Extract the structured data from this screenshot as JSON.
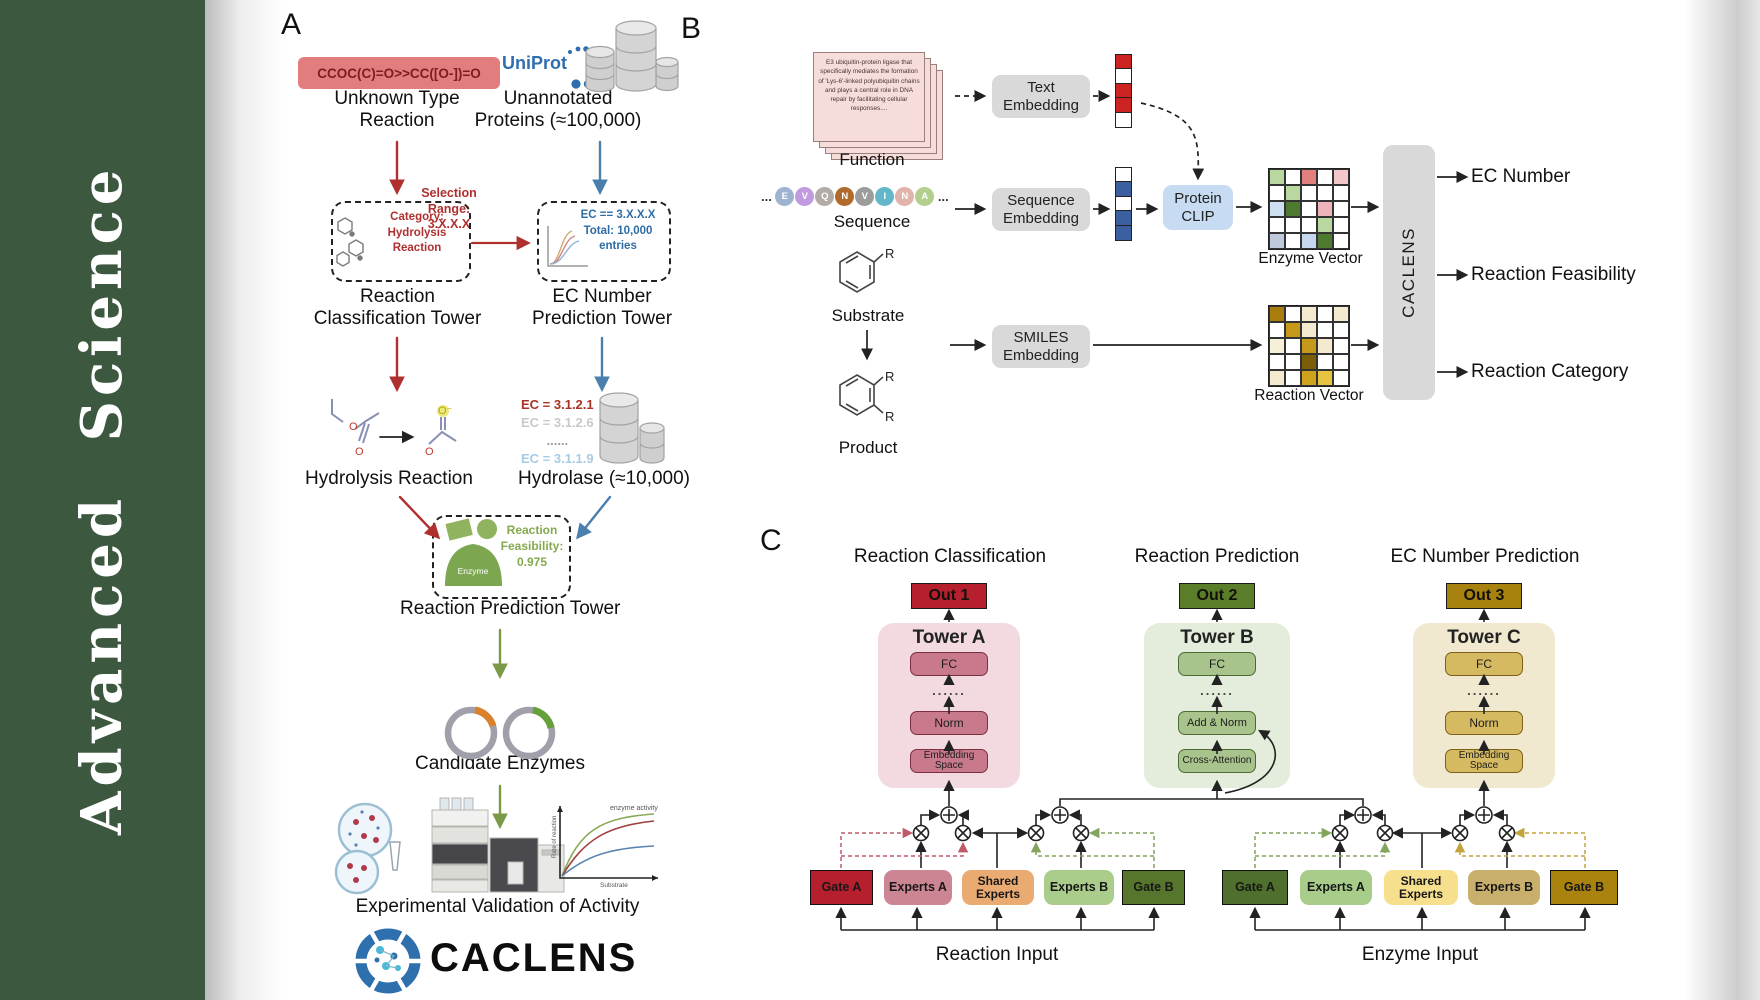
{
  "sidebar": {
    "journal_title": "Advanced  Science"
  },
  "panel_a": {
    "label": "A",
    "smiles": "CCOC(C)=O>>CC([O-])=O",
    "uniprot": "UniProt",
    "unknown_reaction": "Unknown Type Reaction",
    "unannotated_proteins": "Unannotated Proteins (≈100,000)",
    "selection_range": "Selection Range: 3.X.X.X",
    "category_box": "Category: Hydrolysis Reaction",
    "ec_box": "EC == 3.X.X.X Total: 10,000 entries",
    "classification_tower": "Reaction Classification Tower",
    "ec_tower": "EC Number Prediction Tower",
    "hydrolysis_reaction": "Hydrolysis Reaction",
    "ec_list": [
      {
        "text": "EC = 3.1.2.1",
        "color": "#a93226"
      },
      {
        "text": "EC = 3.1.2.6",
        "color": "#c9c9c9"
      },
      {
        "text": "......",
        "color": "#9b9b9b"
      },
      {
        "text": "EC = 3.1.1.9",
        "color": "#a8cbe4"
      }
    ],
    "hydrolase": "Hydrolase (≈10,000)",
    "enzyme_badge": "Enzyme",
    "feasibility": "Reaction Feasibility: 0.975",
    "prediction_tower": "Reaction Prediction Tower",
    "candidate_enzymes": "Candidate Enzymes",
    "plot": {
      "ylabel": "Rate of reaction",
      "xlabel": "Substrate",
      "annotation": "enzyme activity"
    },
    "validation": "Experimental Validation of Activity",
    "brand": "CACLENS"
  },
  "panel_b": {
    "label": "B",
    "function_text": "E3 ubiquitin-protein ligase that specifically mediates the formation of 'Lys-6'-linked polyubiquitin chains and plays a central role in DNA repair by facilitating cellular responses....",
    "function_label": "Function",
    "ellipsis": "...",
    "residues": [
      {
        "letter": "E",
        "color": "#9db3cf"
      },
      {
        "letter": "V",
        "color": "#bf9be0"
      },
      {
        "letter": "Q",
        "color": "#b3aca6"
      },
      {
        "letter": "N",
        "color": "#b06a2c"
      },
      {
        "letter": "V",
        "color": "#9c9c9c"
      },
      {
        "letter": "I",
        "color": "#63b7c9"
      },
      {
        "letter": "N",
        "color": "#e0b4ab"
      },
      {
        "letter": "A",
        "color": "#b3cf8e"
      }
    ],
    "sequence_label": "Sequence",
    "text_embedding": "Text Embedding",
    "sequence_embedding": "Sequence Embedding",
    "protein_clip": "Protein CLIP",
    "substrate_label": "Substrate",
    "product_label": "Product",
    "r_label": "R",
    "smiles_embedding": "SMILES Embedding",
    "enzyme_vector_label": "Enzyme Vector",
    "reaction_vector_label": "Reaction Vector",
    "caclens": "CACLENS",
    "outputs": [
      "EC Number",
      "Reaction Feasibility",
      "Reaction Category"
    ],
    "text_vector": [
      "#cc2222",
      "#ffffff",
      "#cc2222",
      "#cc2222",
      "#ffffff"
    ],
    "sequence_vector": [
      "#ffffff",
      "#3b5fa0",
      "#ffffff",
      "#3b5fa0",
      "#3b5fa0"
    ],
    "enzyme_vector": [
      [
        "#b9d89f",
        "#ffffff",
        "#e2807f",
        "#ffffff",
        "#f3c6ca"
      ],
      [
        "#ffffff",
        "#b9d89f",
        "#ffffff",
        "#ffffff",
        "#ffffff"
      ],
      [
        "#cfdff2",
        "#4e7a30",
        "#ffffff",
        "#eeb4ba",
        "#ffffff"
      ],
      [
        "#ffffff",
        "#ffffff",
        "#ffffff",
        "#b9d89f",
        "#ffffff"
      ],
      [
        "#bfcbdd",
        "#ffffff",
        "#c5d8ef",
        "#4e7a30",
        "#ffffff"
      ]
    ],
    "reaction_vector": [
      [
        "#a87d0e",
        "#ffffff",
        "#f3ead0",
        "#ffffff",
        "#f3ead0"
      ],
      [
        "#ffffff",
        "#c59a1a",
        "#f3ead0",
        "#ffffff",
        "#ffffff"
      ],
      [
        "#f7f0d8",
        "#ffffff",
        "#c59a1a",
        "#f3ead0",
        "#ffffff"
      ],
      [
        "#ffffff",
        "#ffffff",
        "#7a5e08",
        "#ffffff",
        "#ffffff"
      ],
      [
        "#f3ead0",
        "#ffffff",
        "#cfa21d",
        "#e7c33f",
        "#ffffff"
      ]
    ]
  },
  "panel_c": {
    "label": "C",
    "columns": [
      {
        "title": "Reaction Classification",
        "out": "Out 1",
        "tower": "Tower A",
        "fc": "FC",
        "dots": "......",
        "mid": "Norm",
        "bottom": "Embedding Space"
      },
      {
        "title": "Reaction Prediction",
        "out": "Out 2",
        "tower": "Tower B",
        "fc": "FC",
        "dots": "......",
        "mid": "Add & Norm",
        "bottom": "Cross-Attention"
      },
      {
        "title": "EC Number Prediction",
        "out": "Out 3",
        "tower": "Tower C",
        "fc": "FC",
        "dots": "......",
        "mid": "Norm",
        "bottom": "Embedding Space"
      }
    ],
    "moe": [
      {
        "gate_a": "Gate A",
        "experts_a": "Experts A",
        "shared": "Shared Experts",
        "experts_b": "Experts B",
        "gate_b": "Gate B",
        "input": "Reaction Input"
      },
      {
        "gate_a": "Gate A",
        "experts_a": "Experts A",
        "shared": "Shared Experts",
        "experts_b": "Experts B",
        "gate_b": "Gate B",
        "input": "Enzyme Input"
      }
    ]
  }
}
